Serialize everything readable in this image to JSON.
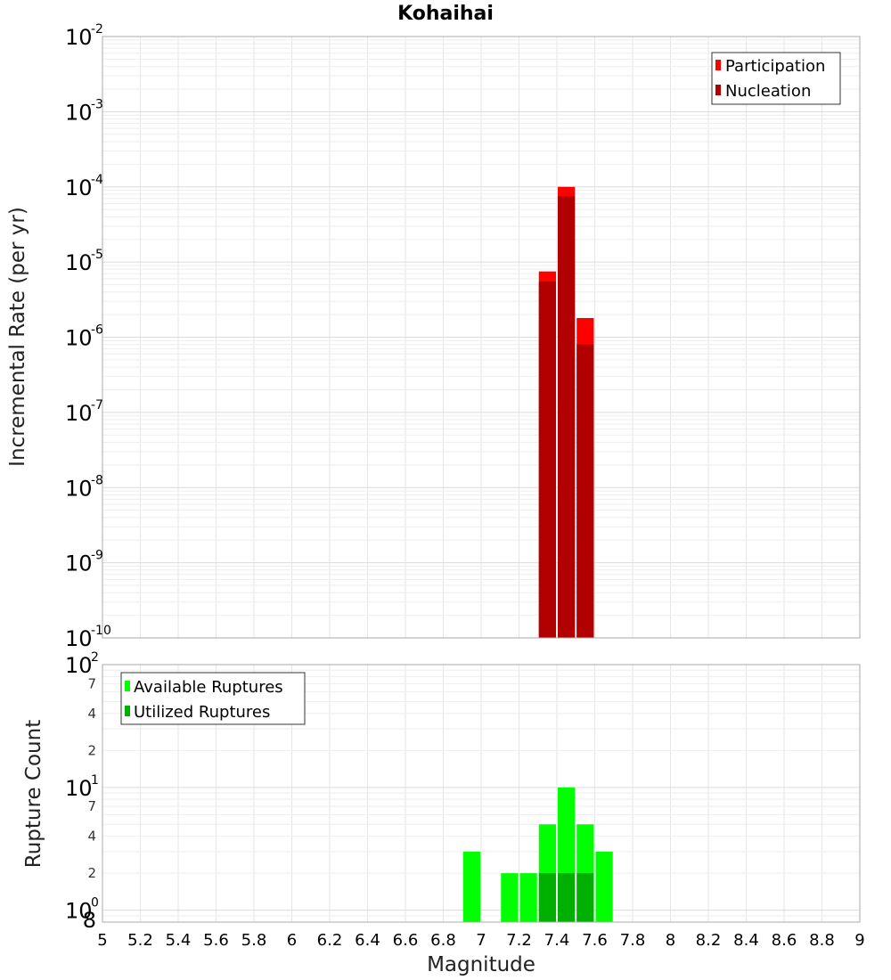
{
  "chart_data": [
    {
      "type": "bar",
      "title": "Kohaihai",
      "ylabel": "Incremental Rate (per yr)",
      "xlim": [
        5,
        9
      ],
      "ylim": [
        1e-10,
        0.01
      ],
      "yscale": "log",
      "bin_width": 0.1,
      "y_ticks": [
        {
          "base": "10",
          "exp": "-2"
        },
        {
          "base": "10",
          "exp": "-3"
        },
        {
          "base": "10",
          "exp": "-4"
        },
        {
          "base": "10",
          "exp": "-5"
        },
        {
          "base": "10",
          "exp": "-6"
        },
        {
          "base": "10",
          "exp": "-7"
        },
        {
          "base": "10",
          "exp": "-8"
        },
        {
          "base": "10",
          "exp": "-9"
        },
        {
          "base": "10",
          "exp": "-10"
        }
      ],
      "legend_position": "top-right",
      "series": [
        {
          "name": "Participation",
          "color": "#ff0000",
          "x": [
            7.35,
            7.45,
            7.55
          ],
          "values": [
            7.5e-06,
            0.0001,
            1.8e-06
          ]
        },
        {
          "name": "Nucleation",
          "color": "#b20000",
          "x": [
            7.35,
            7.45,
            7.55
          ],
          "values": [
            5.5e-06,
            7.5e-05,
            8e-07
          ]
        }
      ],
      "grid": true
    },
    {
      "type": "bar",
      "ylabel": "Rupture Count",
      "xlabel": "Magnitude",
      "xlim": [
        5,
        9
      ],
      "ylim": [
        0.8,
        100
      ],
      "yscale": "log",
      "bin_width": 0.1,
      "y_major_ticks": [
        {
          "base": "10",
          "exp": "2"
        },
        {
          "base": "10",
          "exp": "1"
        },
        {
          "base": "10",
          "exp": "0"
        }
      ],
      "y_minor_tick_labels": [
        "7",
        "4",
        "2",
        "7",
        "4",
        "2",
        "8"
      ],
      "x_ticks": [
        "5",
        "5.2",
        "5.4",
        "5.6",
        "5.8",
        "6",
        "6.2",
        "6.4",
        "6.6",
        "6.8",
        "7",
        "7.2",
        "7.4",
        "7.6",
        "7.8",
        "8",
        "8.2",
        "8.4",
        "8.6",
        "8.8",
        "9"
      ],
      "legend_position": "top-left",
      "series": [
        {
          "name": "Available Ruptures",
          "color": "#00ff00",
          "x": [
            6.95,
            7.15,
            7.25,
            7.35,
            7.45,
            7.55,
            7.65
          ],
          "values": [
            3,
            2,
            2,
            5,
            10,
            5,
            3
          ]
        },
        {
          "name": "Utilized Ruptures",
          "color": "#00b000",
          "x": [
            7.35,
            7.45,
            7.55
          ],
          "values": [
            2,
            2,
            2
          ]
        }
      ],
      "grid": true
    }
  ]
}
